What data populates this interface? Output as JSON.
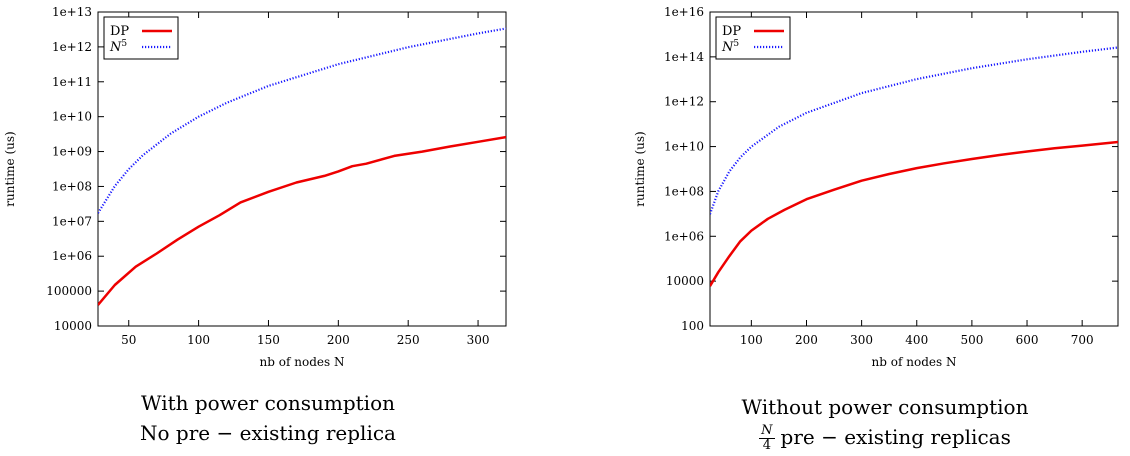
{
  "chart_data": [
    {
      "type": "line",
      "xlabel": "nb of nodes N",
      "ylabel": "runtime (us)",
      "xlim": [
        28,
        320
      ],
      "ylim": [
        10000,
        10000000000000.0
      ],
      "yscale": "log",
      "xticks": [
        50,
        100,
        150,
        200,
        250,
        300
      ],
      "yticks": [
        10000,
        100000,
        1000000.0,
        10000000.0,
        100000000.0,
        1000000000.0,
        10000000000.0,
        100000000000.0,
        1000000000000.0,
        10000000000000.0
      ],
      "ytick_labels": [
        "10000",
        "100000",
        "1e+06",
        "1e+07",
        "1e+08",
        "1e+09",
        "1e+10",
        "1e+11",
        "1e+12",
        "1e+13"
      ],
      "legend_position": "top-left",
      "series": [
        {
          "name": "DP",
          "style": "solid",
          "color": "#ee0000",
          "x": [
            28,
            40,
            55,
            70,
            85,
            100,
            115,
            130,
            150,
            170,
            190,
            200,
            210,
            220,
            240,
            260,
            280,
            300,
            320
          ],
          "y": [
            40000,
            150000,
            500000,
            1200000,
            3000000,
            7000000,
            15000000,
            35000000,
            70000000,
            130000000,
            200000000,
            270000000,
            380000000,
            450000000,
            750000000,
            1000000000,
            1400000000,
            1900000000,
            2600000000
          ]
        },
        {
          "name": "N^5",
          "style": "dotted",
          "color": "#1a1aff",
          "x": [
            28,
            40,
            50,
            60,
            80,
            100,
            120,
            150,
            200,
            250,
            300,
            320
          ],
          "y": [
            17210368,
            102400000,
            312500000,
            777600000,
            3276800000,
            10000000000,
            24883200000,
            75937500000,
            320000000000,
            976562500000,
            2430000000000,
            3355443200000
          ]
        }
      ],
      "caption": [
        "With power consumption",
        "No pre − existing replica"
      ]
    },
    {
      "type": "line",
      "xlabel": "nb of nodes N",
      "ylabel": "runtime (us)",
      "xlim": [
        25,
        765
      ],
      "ylim": [
        100,
        1e+16
      ],
      "yscale": "log",
      "xticks": [
        100,
        200,
        300,
        400,
        500,
        600,
        700
      ],
      "yticks": [
        100,
        10000,
        1000000.0,
        100000000.0,
        10000000000.0,
        1000000000000.0,
        100000000000000.0,
        1e+16
      ],
      "ytick_labels": [
        "100",
        "10000",
        "1e+06",
        "1e+08",
        "1e+10",
        "1e+12",
        "1e+14",
        "1e+16"
      ],
      "legend_position": "top-left",
      "series": [
        {
          "name": "DP",
          "style": "solid",
          "color": "#ee0000",
          "x": [
            25,
            40,
            60,
            80,
            100,
            130,
            160,
            200,
            250,
            300,
            350,
            400,
            450,
            500,
            550,
            600,
            650,
            700,
            765
          ],
          "y": [
            6000,
            25000,
            130000,
            600000,
            1800000,
            6000000,
            15000000,
            45000000,
            120000000,
            300000000,
            600000000,
            1100000000,
            1800000000,
            2800000000,
            4200000000,
            6000000000,
            8500000000,
            11000000000,
            16000000000
          ]
        },
        {
          "name": "N^5",
          "style": "dotted",
          "color": "#1a1aff",
          "x": [
            25,
            40,
            60,
            80,
            100,
            150,
            200,
            300,
            400,
            500,
            600,
            700,
            765
          ],
          "y": [
            9765625,
            102400000,
            777600000,
            3276800000,
            10000000000,
            75937500000,
            320000000000,
            2430000000000,
            10240000000000,
            31250000000000,
            77760000000000,
            168070000000000,
            262254436000000
          ]
        }
      ],
      "caption": [
        "Without power consumption",
        "pre − existing replicas"
      ],
      "caption_fraction": {
        "numerator": "N",
        "denominator": "4"
      }
    }
  ]
}
